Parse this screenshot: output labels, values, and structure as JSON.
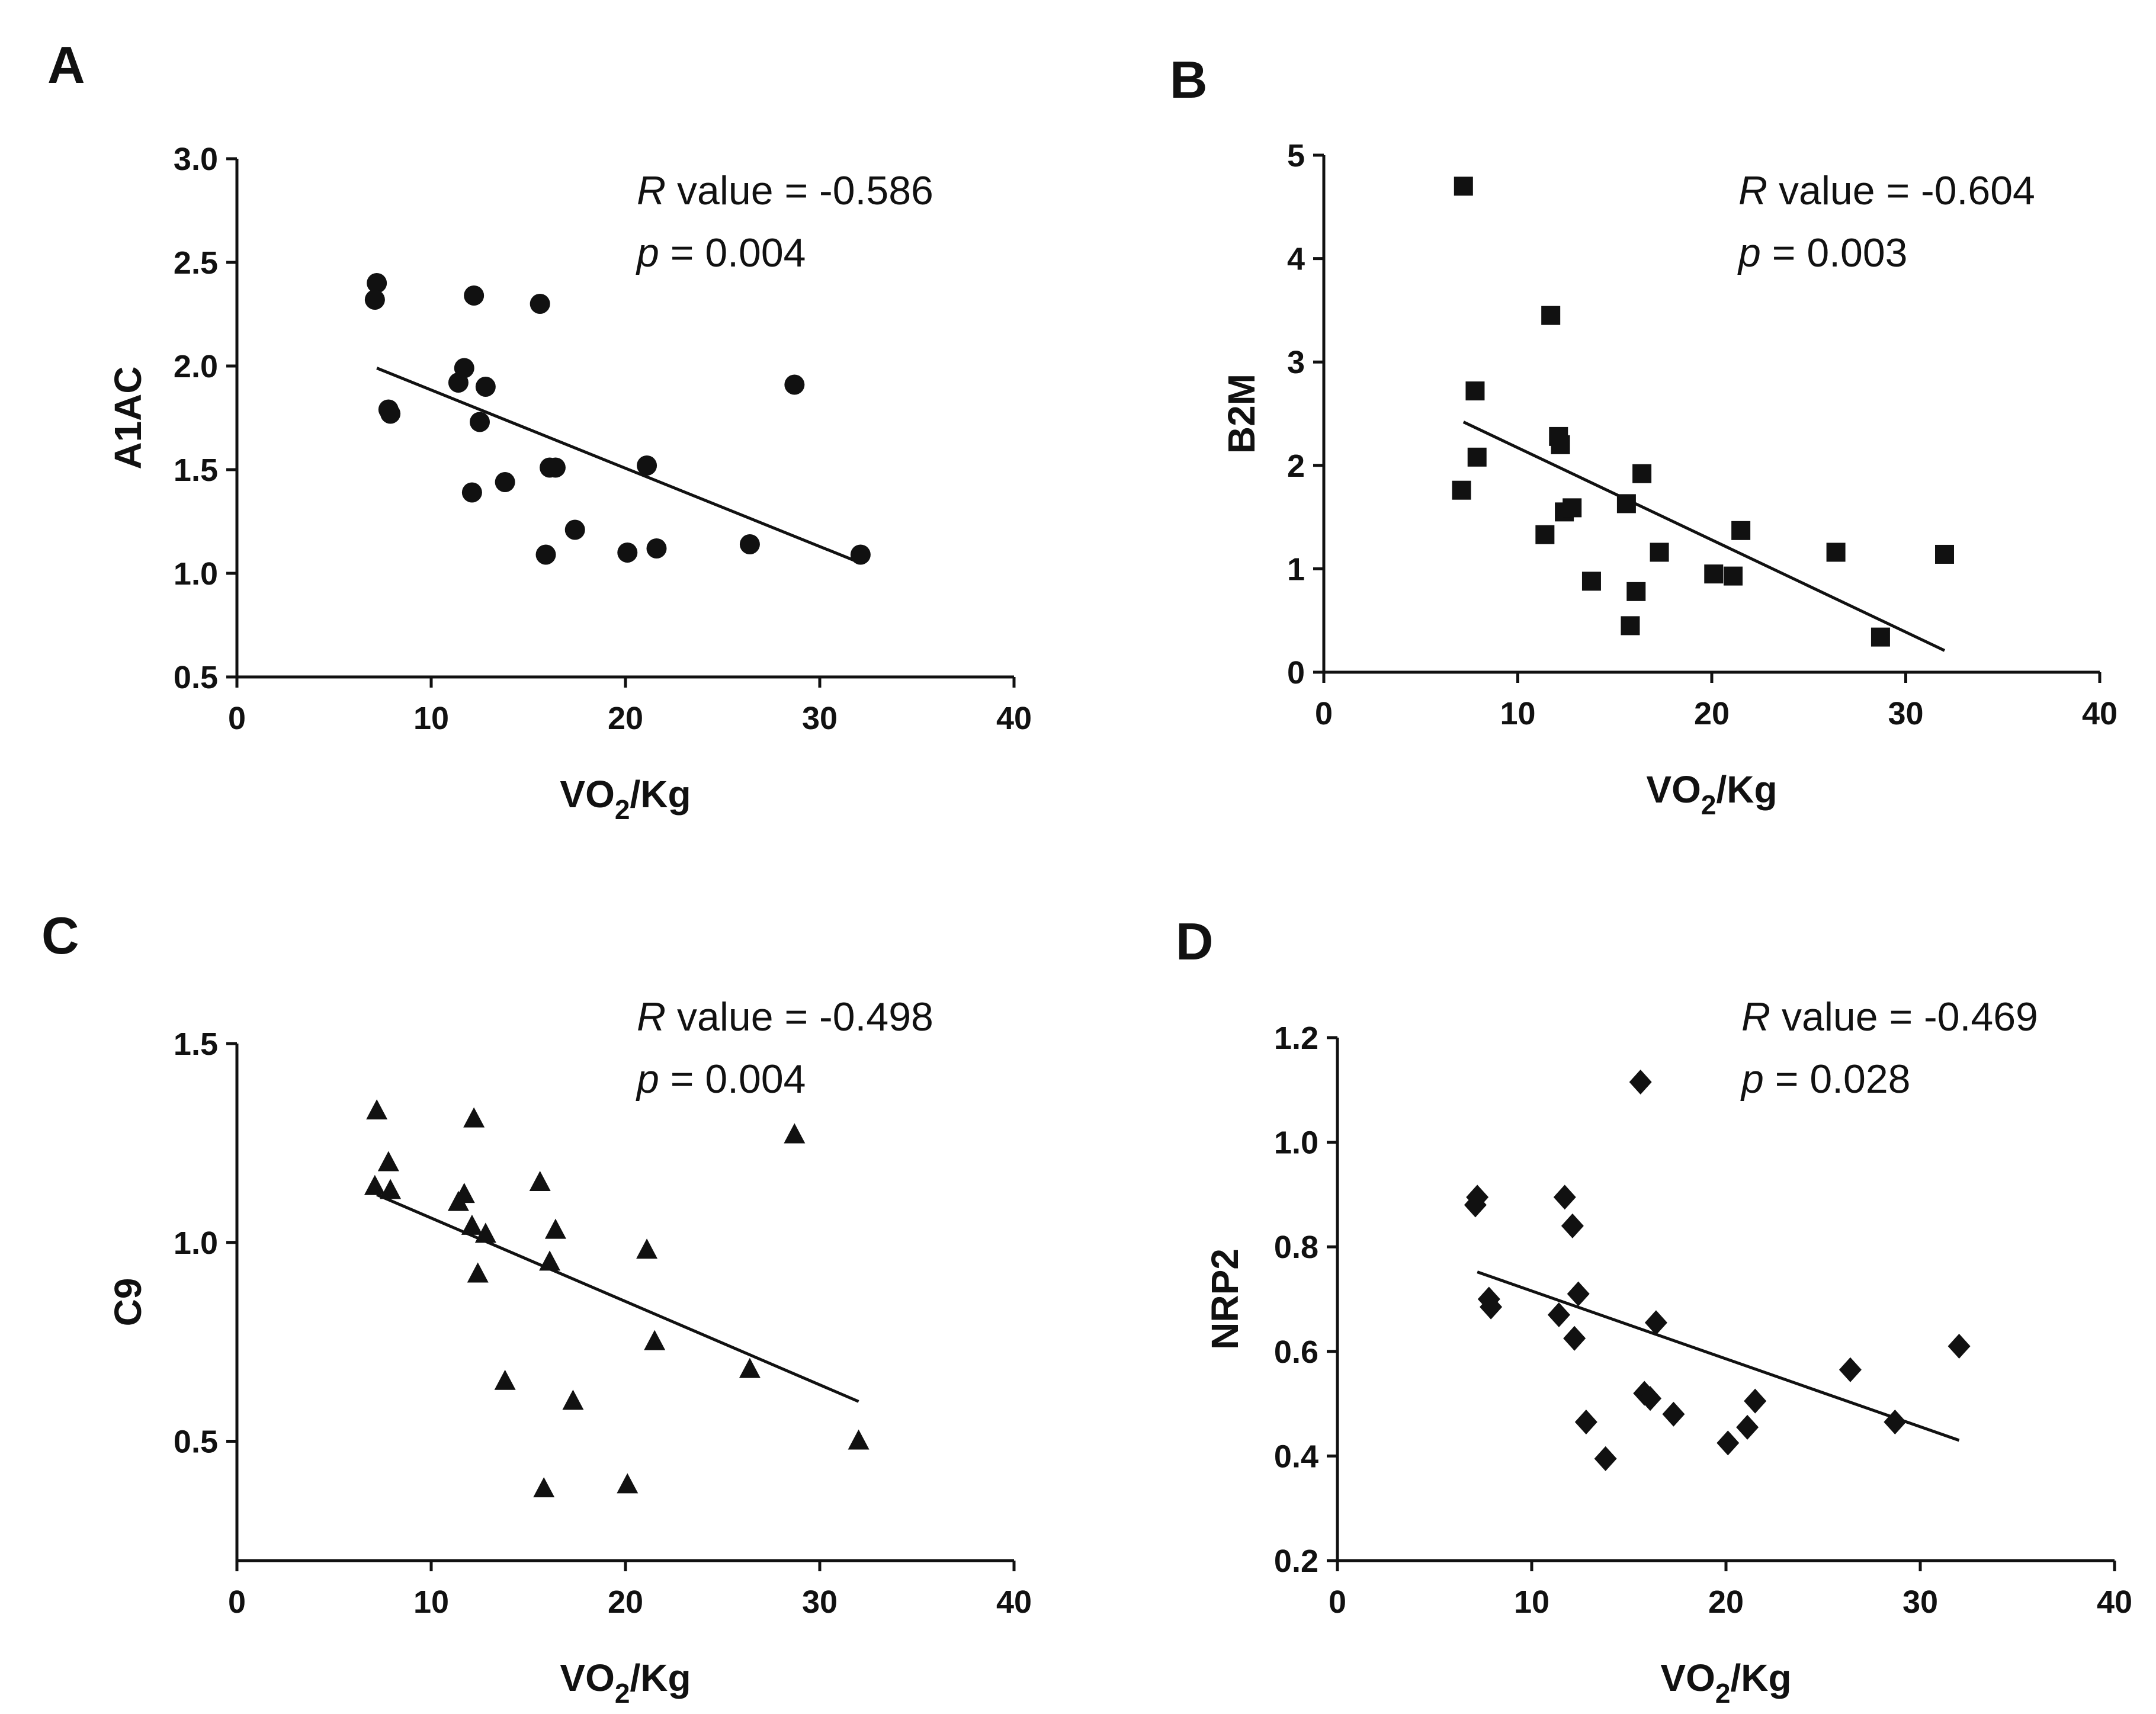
{
  "figure": {
    "background": "#ffffff",
    "ink": "#111111"
  },
  "chart_data": [
    {
      "panel": "A",
      "type": "scatter",
      "marker": "circle",
      "xlabel": {
        "base": "VO",
        "sub": "2",
        "rest": "/Kg"
      },
      "ylabel": "A1AC",
      "xlim": [
        0,
        40
      ],
      "ylim": [
        0.5,
        3.0
      ],
      "xticks": [
        "0",
        "10",
        "20",
        "30",
        "40"
      ],
      "yticks": [
        "0.5",
        "1.0",
        "1.5",
        "2.0",
        "2.5",
        "3.0"
      ],
      "stats": {
        "r_symbol": "R",
        "r_text": " value = -0.586",
        "p_symbol": "p",
        "p_text": " = 0.004"
      },
      "points": [
        {
          "x": 7.2,
          "y": 2.4
        },
        {
          "x": 7.1,
          "y": 2.32
        },
        {
          "x": 7.8,
          "y": 1.79
        },
        {
          "x": 7.9,
          "y": 1.77
        },
        {
          "x": 11.4,
          "y": 1.92
        },
        {
          "x": 11.7,
          "y": 1.99
        },
        {
          "x": 12.2,
          "y": 2.34
        },
        {
          "x": 12.1,
          "y": 1.39
        },
        {
          "x": 12.5,
          "y": 1.73
        },
        {
          "x": 12.8,
          "y": 1.9
        },
        {
          "x": 13.8,
          "y": 1.44
        },
        {
          "x": 15.6,
          "y": 2.3
        },
        {
          "x": 15.9,
          "y": 1.09
        },
        {
          "x": 16.1,
          "y": 1.51
        },
        {
          "x": 16.4,
          "y": 1.51
        },
        {
          "x": 17.4,
          "y": 1.21
        },
        {
          "x": 20.1,
          "y": 1.1
        },
        {
          "x": 21.1,
          "y": 1.52
        },
        {
          "x": 21.6,
          "y": 1.12
        },
        {
          "x": 26.4,
          "y": 1.14
        },
        {
          "x": 28.7,
          "y": 1.91
        },
        {
          "x": 32.1,
          "y": 1.09
        }
      ],
      "fit": {
        "x": [
          7.2,
          32.1
        ],
        "y": [
          1.99,
          1.05
        ]
      }
    },
    {
      "panel": "B",
      "type": "scatter",
      "marker": "square",
      "xlabel": {
        "base": "VO",
        "sub": "2",
        "rest": "/Kg"
      },
      "ylabel": "B2M",
      "xlim": [
        0,
        40
      ],
      "ylim": [
        0,
        5
      ],
      "xticks": [
        "0",
        "10",
        "20",
        "30",
        "40"
      ],
      "yticks": [
        "0",
        "1",
        "2",
        "3",
        "4",
        "5"
      ],
      "stats": {
        "r_symbol": "R",
        "r_text": " value = -0.604",
        "p_symbol": "p",
        "p_text": " = 0.003"
      },
      "points": [
        {
          "x": 7.2,
          "y": 4.7
        },
        {
          "x": 7.1,
          "y": 1.76
        },
        {
          "x": 7.8,
          "y": 2.72
        },
        {
          "x": 7.9,
          "y": 2.08
        },
        {
          "x": 11.4,
          "y": 1.33
        },
        {
          "x": 11.7,
          "y": 3.45
        },
        {
          "x": 12.1,
          "y": 2.28
        },
        {
          "x": 12.2,
          "y": 2.2
        },
        {
          "x": 12.4,
          "y": 1.55
        },
        {
          "x": 12.8,
          "y": 1.59
        },
        {
          "x": 13.8,
          "y": 0.88
        },
        {
          "x": 15.6,
          "y": 1.63
        },
        {
          "x": 15.8,
          "y": 0.45
        },
        {
          "x": 16.1,
          "y": 0.78
        },
        {
          "x": 16.4,
          "y": 1.92
        },
        {
          "x": 17.3,
          "y": 1.16
        },
        {
          "x": 20.1,
          "y": 0.95
        },
        {
          "x": 21.1,
          "y": 0.93
        },
        {
          "x": 21.5,
          "y": 1.37
        },
        {
          "x": 26.4,
          "y": 1.16
        },
        {
          "x": 28.7,
          "y": 0.34
        },
        {
          "x": 32.0,
          "y": 1.14
        }
      ],
      "fit": {
        "x": [
          7.2,
          32.0
        ],
        "y": [
          2.42,
          0.21
        ]
      }
    },
    {
      "panel": "C",
      "type": "scatter",
      "marker": "triangle",
      "xlabel": {
        "base": "VO",
        "sub": "2",
        "rest": "/Kg"
      },
      "ylabel": "C9",
      "xlim": [
        0,
        40
      ],
      "ylim": [
        0.2,
        1.5
      ],
      "xticks": [
        "0",
        "10",
        "20",
        "30",
        "40"
      ],
      "yticks": [
        "0.5",
        "1.0",
        "1.5"
      ],
      "ytick_values": [
        0.5,
        1.0,
        1.5
      ],
      "stats": {
        "r_symbol": "R",
        "r_text": " value = -0.498",
        "p_symbol": "p",
        "p_text": " = 0.004"
      },
      "points": [
        {
          "x": 7.2,
          "y": 1.33
        },
        {
          "x": 7.1,
          "y": 1.14
        },
        {
          "x": 7.8,
          "y": 1.2
        },
        {
          "x": 7.9,
          "y": 1.13
        },
        {
          "x": 11.4,
          "y": 1.1
        },
        {
          "x": 11.7,
          "y": 1.12
        },
        {
          "x": 12.1,
          "y": 1.04
        },
        {
          "x": 12.2,
          "y": 1.31
        },
        {
          "x": 12.4,
          "y": 0.92
        },
        {
          "x": 12.8,
          "y": 1.02
        },
        {
          "x": 13.8,
          "y": 0.65
        },
        {
          "x": 15.6,
          "y": 1.15
        },
        {
          "x": 15.8,
          "y": 0.38
        },
        {
          "x": 16.1,
          "y": 0.95
        },
        {
          "x": 16.4,
          "y": 1.03
        },
        {
          "x": 17.3,
          "y": 0.6
        },
        {
          "x": 20.1,
          "y": 0.39
        },
        {
          "x": 21.1,
          "y": 0.98
        },
        {
          "x": 21.5,
          "y": 0.75
        },
        {
          "x": 26.4,
          "y": 0.68
        },
        {
          "x": 28.7,
          "y": 1.27
        },
        {
          "x": 32.0,
          "y": 0.5
        }
      ],
      "fit": {
        "x": [
          7.2,
          32.0
        ],
        "y": [
          1.12,
          0.6
        ]
      }
    },
    {
      "panel": "D",
      "type": "scatter",
      "marker": "diamond",
      "xlabel": {
        "base": "VO",
        "sub": "2",
        "rest": "/Kg"
      },
      "ylabel": "NRP2",
      "xlim": [
        0,
        40
      ],
      "ylim": [
        0.2,
        1.2
      ],
      "xticks": [
        "0",
        "10",
        "20",
        "30",
        "40"
      ],
      "yticks": [
        "0.2",
        "0.4",
        "0.6",
        "0.8",
        "1.0",
        "1.2"
      ],
      "stats": {
        "r_symbol": "R",
        "r_text": " value = -0.469",
        "p_symbol": "p",
        "p_text": " = 0.028"
      },
      "points": [
        {
          "x": 7.2,
          "y": 0.895
        },
        {
          "x": 7.1,
          "y": 0.88
        },
        {
          "x": 7.8,
          "y": 0.7
        },
        {
          "x": 7.9,
          "y": 0.685
        },
        {
          "x": 11.4,
          "y": 0.67
        },
        {
          "x": 11.7,
          "y": 0.895
        },
        {
          "x": 12.1,
          "y": 0.84
        },
        {
          "x": 12.2,
          "y": 0.625
        },
        {
          "x": 12.4,
          "y": 0.71
        },
        {
          "x": 12.8,
          "y": 0.465
        },
        {
          "x": 13.8,
          "y": 0.395
        },
        {
          "x": 15.6,
          "y": 1.115
        },
        {
          "x": 15.8,
          "y": 0.52
        },
        {
          "x": 16.1,
          "y": 0.51
        },
        {
          "x": 16.4,
          "y": 0.655
        },
        {
          "x": 17.3,
          "y": 0.48
        },
        {
          "x": 20.1,
          "y": 0.425
        },
        {
          "x": 21.1,
          "y": 0.455
        },
        {
          "x": 21.5,
          "y": 0.505
        },
        {
          "x": 26.4,
          "y": 0.565
        },
        {
          "x": 28.7,
          "y": 0.465
        },
        {
          "x": 32.0,
          "y": 0.61
        }
      ],
      "fit": {
        "x": [
          7.2,
          32.0
        ],
        "y": [
          0.752,
          0.43
        ]
      }
    }
  ]
}
